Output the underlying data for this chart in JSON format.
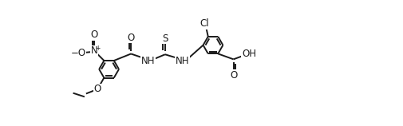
{
  "background_color": "#ffffff",
  "line_color": "#1a1a1a",
  "line_width": 1.4,
  "font_size": 8.5,
  "fig_width": 5.06,
  "fig_height": 1.58,
  "dpi": 100,
  "ring_r": 0.32,
  "xlim": [
    -0.5,
    9.5
  ],
  "ylim": [
    -1.8,
    2.2
  ]
}
